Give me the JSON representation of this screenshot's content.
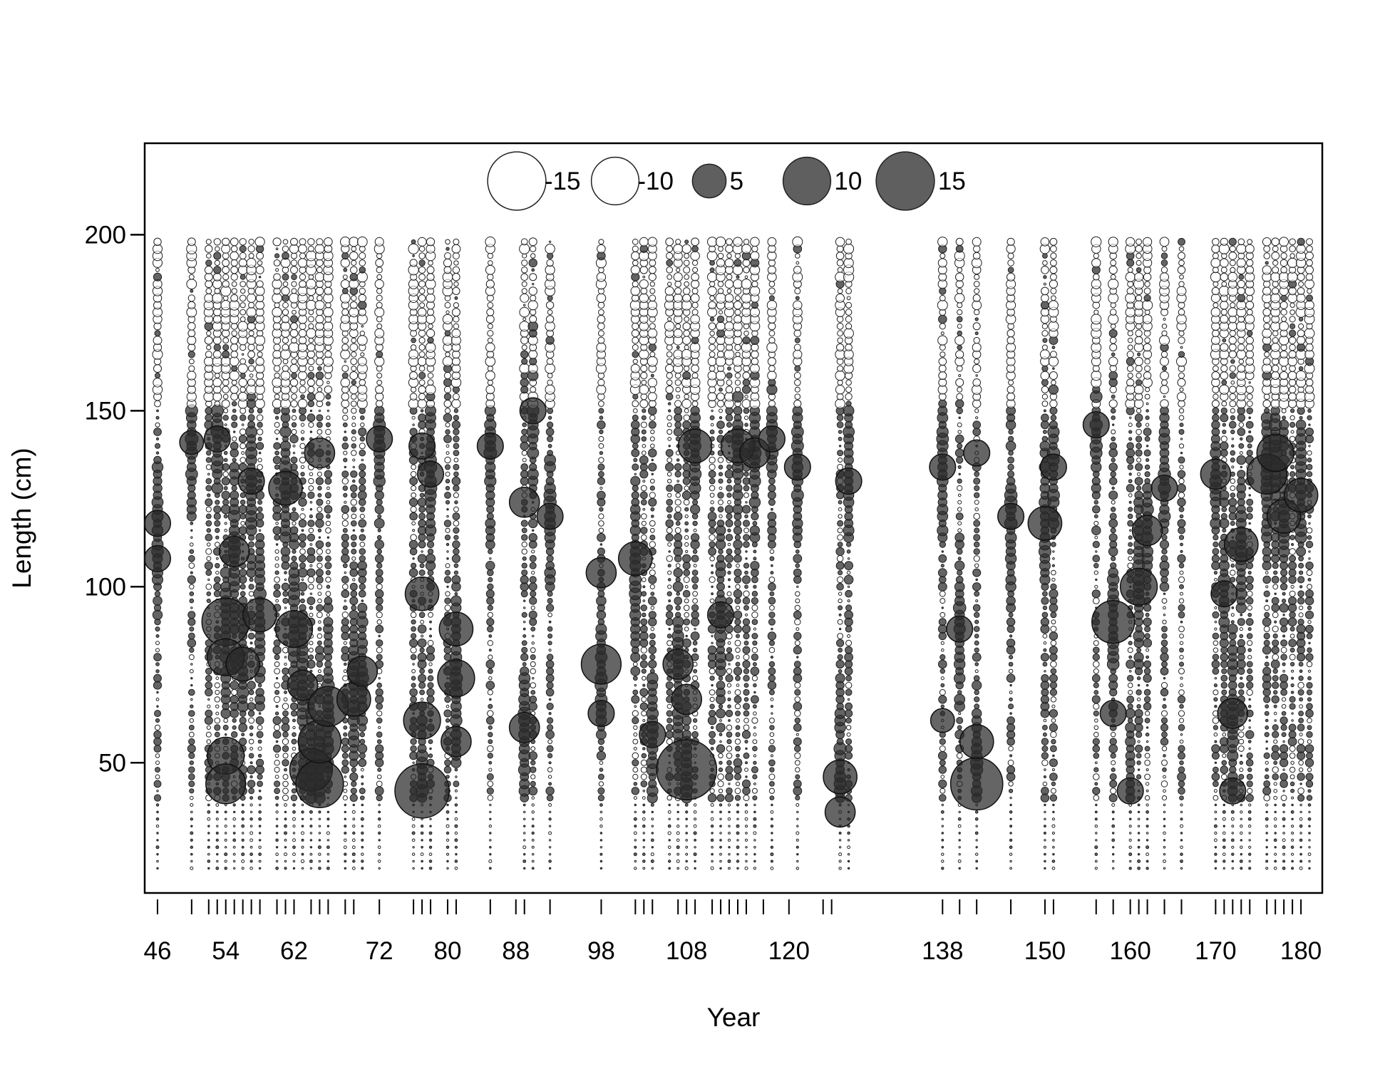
{
  "chart_data": {
    "type": "scatter",
    "subtype": "bubble",
    "xlabel": "Year",
    "ylabel": "Length (cm)",
    "xlim": [
      44.5,
      182.5
    ],
    "ylim": [
      13,
      226
    ],
    "x_tick_labels": [
      "46",
      "54",
      "62",
      "72",
      "80",
      "88",
      "98",
      "108",
      "120",
      "138",
      "150",
      "160",
      "170",
      "180"
    ],
    "y_tick_labels": [
      "50",
      "100",
      "150",
      "200"
    ],
    "x_minor_ticks": [
      46,
      50,
      52,
      53,
      54,
      55,
      56,
      57,
      58,
      60,
      61,
      62,
      64,
      65,
      66,
      68,
      69,
      72,
      76,
      77,
      78,
      80,
      81,
      85,
      88,
      89,
      92,
      98,
      102,
      103,
      104,
      107,
      108,
      109,
      111,
      112,
      113,
      114,
      115,
      117,
      120,
      124,
      125,
      138,
      140,
      142,
      146,
      150,
      151,
      156,
      158,
      160,
      161,
      162,
      164,
      166,
      170,
      171,
      172,
      173,
      174,
      176,
      177,
      178,
      179,
      180
    ],
    "years": [
      46,
      50,
      52,
      53,
      54,
      55,
      56,
      57,
      58,
      60,
      61,
      62,
      63,
      64,
      65,
      66,
      68,
      69,
      70,
      72,
      76,
      77,
      78,
      80,
      81,
      85,
      89,
      90,
      92,
      98,
      102,
      103,
      104,
      106,
      107,
      108,
      109,
      111,
      112,
      113,
      114,
      115,
      116,
      118,
      121,
      126,
      127,
      138,
      140,
      142,
      146,
      150,
      151,
      156,
      158,
      160,
      161,
      162,
      164,
      166,
      170,
      171,
      172,
      173,
      174,
      176,
      177,
      178,
      179,
      180,
      181
    ],
    "length_bins": {
      "from": 20,
      "to": 198,
      "step": 2
    },
    "legend": {
      "position": "top-center",
      "entries": [
        {
          "label": "-15",
          "value": -15
        },
        {
          "label": "-10",
          "value": -10
        },
        {
          "label": "5",
          "value": 5
        },
        {
          "label": "10",
          "value": 10
        },
        {
          "label": "15",
          "value": 15
        }
      ]
    },
    "series": [
      {
        "name": "5",
        "note": "positive residuals are filled dark grey bubbles, negative residuals hollow; dominant large values listed",
        "points": [
          {
            "x": 46,
            "y": 118,
            "v": 3
          },
          {
            "x": 46,
            "y": 108,
            "v": 3
          },
          {
            "x": 50,
            "y": 141,
            "v": 2.5
          },
          {
            "x": 53,
            "y": 142,
            "v": 3
          },
          {
            "x": 54,
            "y": 90,
            "v": 10
          },
          {
            "x": 54,
            "y": 80,
            "v": 6
          },
          {
            "x": 54,
            "y": 52,
            "v": 6
          },
          {
            "x": 54,
            "y": 44,
            "v": 7
          },
          {
            "x": 55,
            "y": 110,
            "v": 4
          },
          {
            "x": 56,
            "y": 78,
            "v": 5
          },
          {
            "x": 57,
            "y": 130,
            "v": 3
          },
          {
            "x": 58,
            "y": 92,
            "v": 5
          },
          {
            "x": 61,
            "y": 128,
            "v": 5
          },
          {
            "x": 62,
            "y": 88,
            "v": 6
          },
          {
            "x": 63,
            "y": 72,
            "v": 4
          },
          {
            "x": 64,
            "y": 48,
            "v": 8
          },
          {
            "x": 65,
            "y": 44,
            "v": 10
          },
          {
            "x": 65,
            "y": 56,
            "v": 8
          },
          {
            "x": 65,
            "y": 138,
            "v": 4
          },
          {
            "x": 66,
            "y": 66,
            "v": 7
          },
          {
            "x": 69,
            "y": 68,
            "v": 5
          },
          {
            "x": 70,
            "y": 76,
            "v": 4
          },
          {
            "x": 72,
            "y": 142,
            "v": 3
          },
          {
            "x": 77,
            "y": 42,
            "v": 13
          },
          {
            "x": 77,
            "y": 62,
            "v": 6
          },
          {
            "x": 77,
            "y": 98,
            "v": 5
          },
          {
            "x": 77,
            "y": 140,
            "v": 3
          },
          {
            "x": 78,
            "y": 132,
            "v": 3
          },
          {
            "x": 81,
            "y": 74,
            "v": 6
          },
          {
            "x": 81,
            "y": 88,
            "v": 5
          },
          {
            "x": 81,
            "y": 56,
            "v": 4
          },
          {
            "x": 85,
            "y": 140,
            "v": 3
          },
          {
            "x": 89,
            "y": 60,
            "v": 4
          },
          {
            "x": 89,
            "y": 124,
            "v": 4
          },
          {
            "x": 90,
            "y": 150,
            "v": 3
          },
          {
            "x": 92,
            "y": 120,
            "v": 3
          },
          {
            "x": 98,
            "y": 78,
            "v": 7
          },
          {
            "x": 98,
            "y": 104,
            "v": 4
          },
          {
            "x": 98,
            "y": 64,
            "v": 3
          },
          {
            "x": 102,
            "y": 108,
            "v": 5
          },
          {
            "x": 104,
            "y": 58,
            "v": 3
          },
          {
            "x": 107,
            "y": 78,
            "v": 4
          },
          {
            "x": 108,
            "y": 48,
            "v": 16
          },
          {
            "x": 108,
            "y": 68,
            "v": 4
          },
          {
            "x": 109,
            "y": 140,
            "v": 5
          },
          {
            "x": 112,
            "y": 92,
            "v": 3
          },
          {
            "x": 114,
            "y": 140,
            "v": 5
          },
          {
            "x": 116,
            "y": 138,
            "v": 4
          },
          {
            "x": 118,
            "y": 142,
            "v": 3
          },
          {
            "x": 121,
            "y": 134,
            "v": 3
          },
          {
            "x": 126,
            "y": 46,
            "v": 5
          },
          {
            "x": 126,
            "y": 36,
            "v": 4
          },
          {
            "x": 127,
            "y": 130,
            "v": 3
          },
          {
            "x": 138,
            "y": 134,
            "v": 3
          },
          {
            "x": 138,
            "y": 62,
            "v": 2.5
          },
          {
            "x": 140,
            "y": 88,
            "v": 3
          },
          {
            "x": 142,
            "y": 44,
            "v": 12
          },
          {
            "x": 142,
            "y": 56,
            "v": 5
          },
          {
            "x": 142,
            "y": 138,
            "v": 3
          },
          {
            "x": 146,
            "y": 120,
            "v": 3
          },
          {
            "x": 150,
            "y": 118,
            "v": 5
          },
          {
            "x": 151,
            "y": 134,
            "v": 3
          },
          {
            "x": 156,
            "y": 146,
            "v": 3
          },
          {
            "x": 158,
            "y": 90,
            "v": 8
          },
          {
            "x": 158,
            "y": 64,
            "v": 3
          },
          {
            "x": 160,
            "y": 42,
            "v": 3
          },
          {
            "x": 161,
            "y": 100,
            "v": 6
          },
          {
            "x": 162,
            "y": 116,
            "v": 4
          },
          {
            "x": 164,
            "y": 128,
            "v": 3
          },
          {
            "x": 170,
            "y": 132,
            "v": 4
          },
          {
            "x": 171,
            "y": 98,
            "v": 3
          },
          {
            "x": 172,
            "y": 64,
            "v": 4
          },
          {
            "x": 172,
            "y": 42,
            "v": 3
          },
          {
            "x": 173,
            "y": 112,
            "v": 5
          },
          {
            "x": 176,
            "y": 132,
            "v": 7
          },
          {
            "x": 177,
            "y": 138,
            "v": 6
          },
          {
            "x": 178,
            "y": 120,
            "v": 5
          },
          {
            "x": 180,
            "y": 126,
            "v": 5
          }
        ]
      }
    ]
  }
}
